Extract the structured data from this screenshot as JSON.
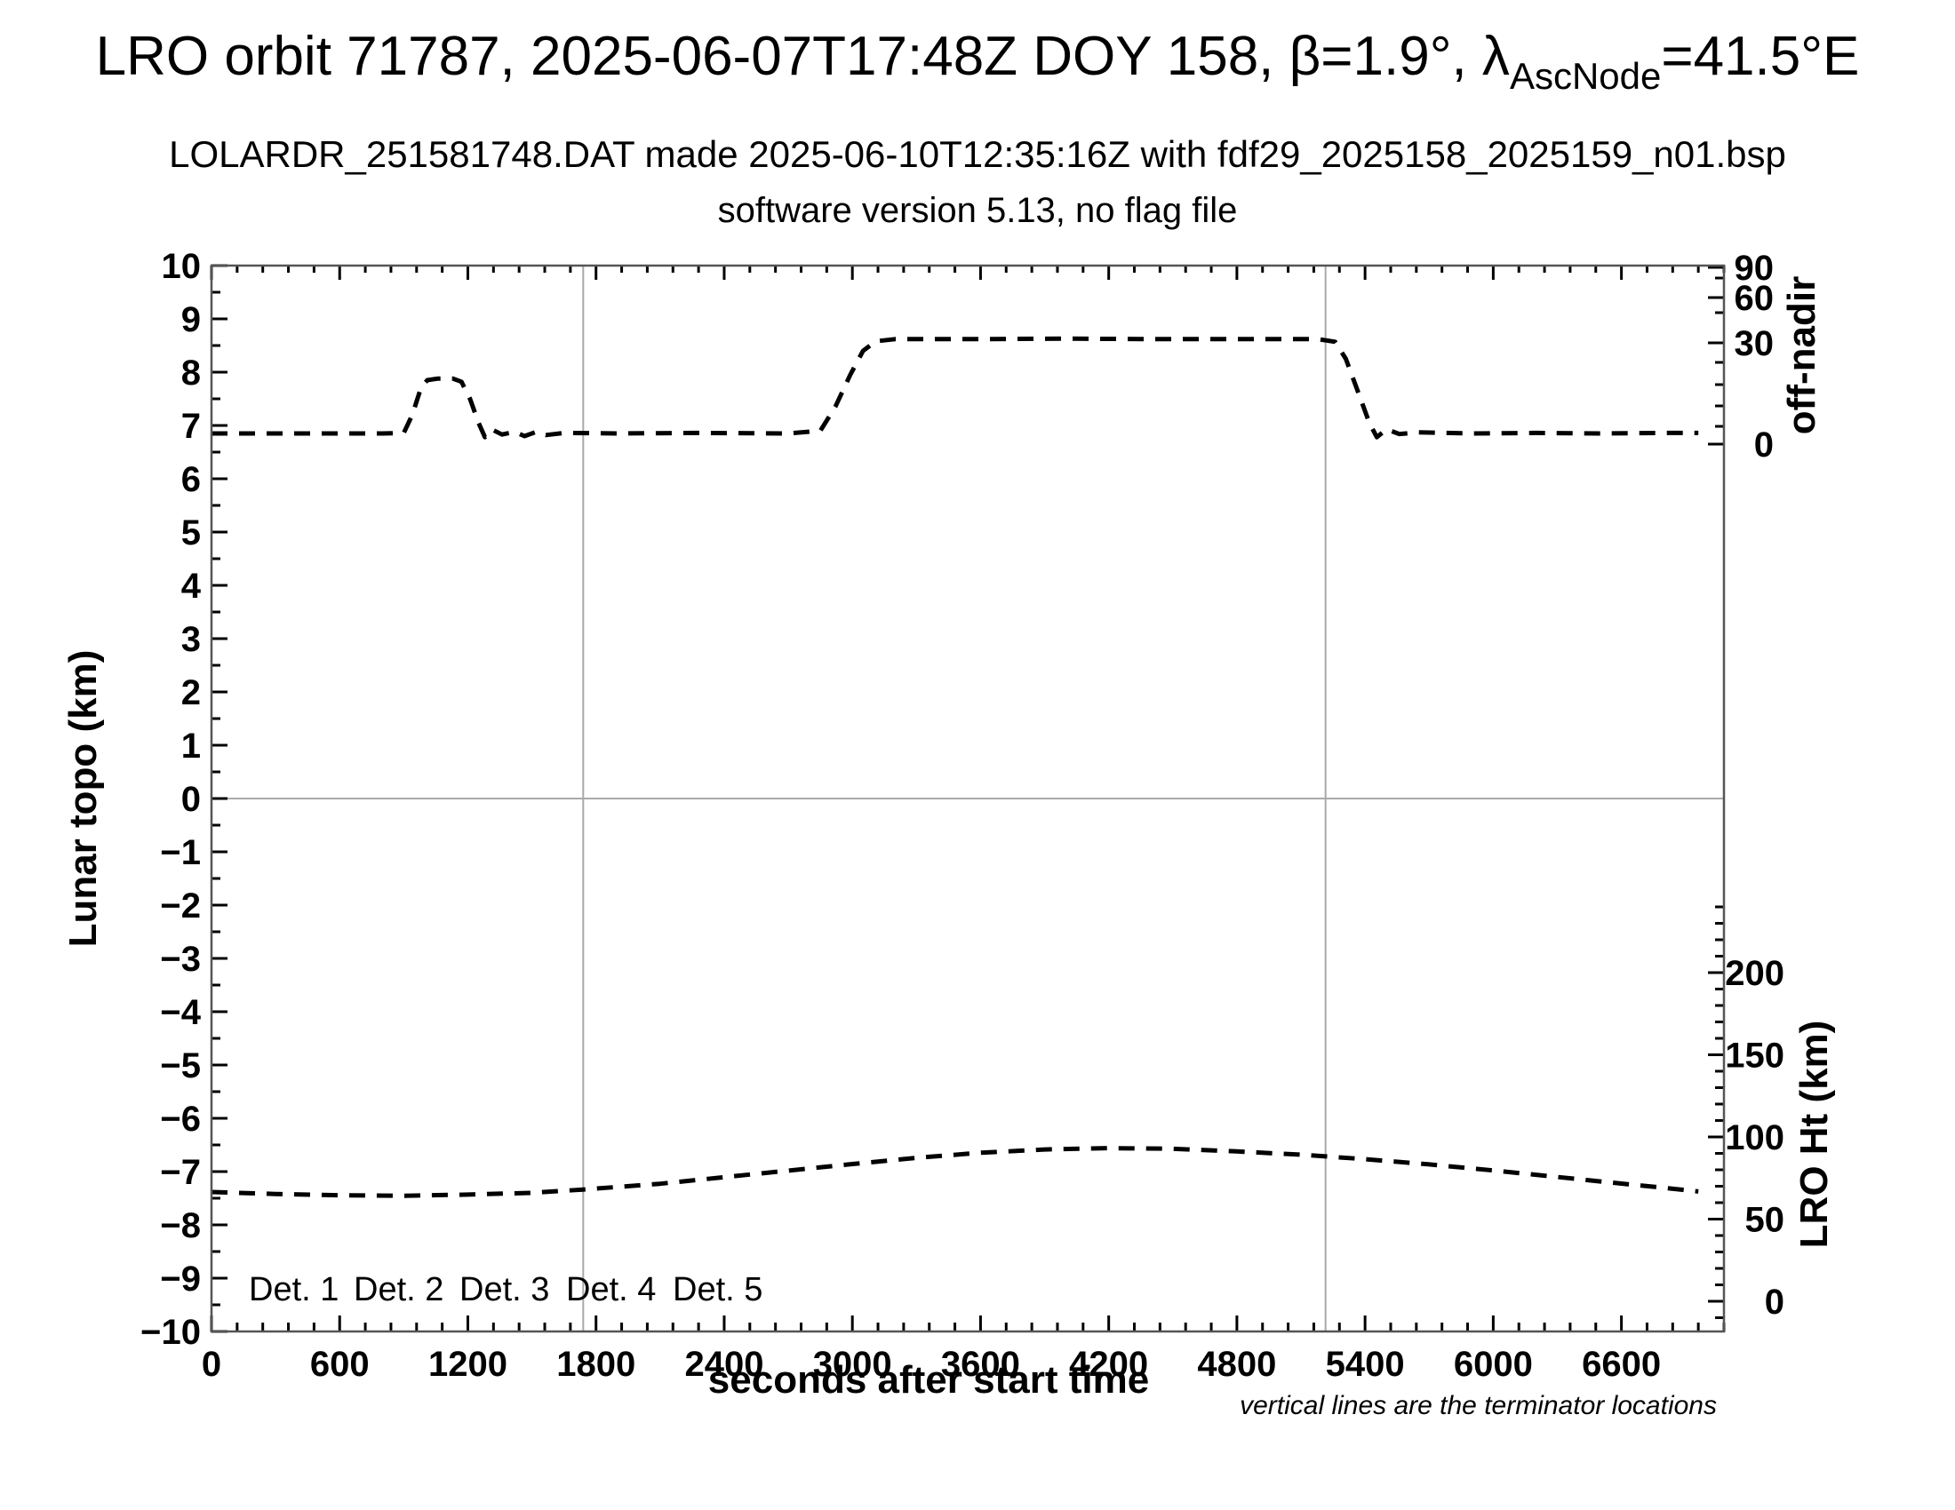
{
  "header": {
    "title_prefix": "LRO orbit 71787, 2025-06-07T17:48Z DOY 158, β=1.9°, λ",
    "title_subscript": "AscNode",
    "title_suffix": "=41.5°E",
    "subtitle": "LOLARDR_251581748.DAT made 2025-06-10T12:35:16Z with fdf29_2025158_2025159_n01.bsp",
    "subtitle2": "software version 5.13, no flag file"
  },
  "chart_data": {
    "type": "line",
    "title": "LRO orbit 71787, 2025-06-07T17:48Z DOY 158, β=1.9°, λAscNode=41.5°E",
    "xlabel": "seconds after start time",
    "xlim": [
      0,
      7080
    ],
    "x_ticks": [
      0,
      600,
      1200,
      1800,
      2400,
      3000,
      3600,
      4200,
      4800,
      5400,
      6000,
      6600
    ],
    "x_minor_step_sec": 120,
    "grid": false,
    "axes": {
      "topo": {
        "label": "Lunar topo (km)",
        "side": "left",
        "lim": [
          -10,
          10
        ],
        "ticks": [
          10,
          9,
          8,
          7,
          6,
          5,
          4,
          3,
          2,
          1,
          0,
          -1,
          -2,
          -3,
          -4,
          -5,
          -6,
          -7,
          -8,
          -9,
          -10
        ],
        "minor_step": 0.5
      },
      "off_nadir": {
        "label": "off-nadir",
        "side": "right-top",
        "units": "degrees",
        "ticks": [
          90,
          60,
          30,
          0
        ],
        "scale": "nonlinear"
      },
      "lro_ht": {
        "label": "LRO Ht (km)",
        "side": "right-bottom",
        "ticks": [
          200,
          150,
          100,
          50,
          0
        ],
        "minor_step_km": 10
      }
    },
    "zero_line_topo_km": 0,
    "terminator_lines_sec": [
      1740,
      5215
    ],
    "annotation": "vertical lines are the terminator locations",
    "legend_position": "bottom-left-inside",
    "legend": [
      {
        "label": "Det. 1",
        "color": "#000000"
      },
      {
        "label": "Det. 2",
        "color": "#0000ff"
      },
      {
        "label": "Det. 3",
        "color": "#00dd00"
      },
      {
        "label": "Det. 4",
        "color": "#ffa500"
      },
      {
        "label": "Det. 5",
        "color": "#ff0000"
      }
    ],
    "series": [
      {
        "name": "spacecraft off-nadir angle",
        "axis": "off_nadir",
        "line_style": "dashed",
        "color": "#000000",
        "approx_levels_deg": {
          "baseline": 3,
          "small_slew_peak": 19,
          "plateau_slew": 32
        },
        "points_deg": [
          [
            0,
            3
          ],
          [
            900,
            3
          ],
          [
            1060,
            19
          ],
          [
            1170,
            19
          ],
          [
            1280,
            2
          ],
          [
            1650,
            3
          ],
          [
            2850,
            3
          ],
          [
            3200,
            32
          ],
          [
            5260,
            32
          ],
          [
            5455,
            2
          ],
          [
            6960,
            3
          ]
        ],
        "points_plot_units": [
          [
            0,
            6.85
          ],
          [
            400,
            6.85
          ],
          [
            800,
            6.85
          ],
          [
            900,
            6.86
          ],
          [
            940,
            7.2
          ],
          [
            980,
            7.7
          ],
          [
            1010,
            7.85
          ],
          [
            1060,
            7.88
          ],
          [
            1130,
            7.88
          ],
          [
            1170,
            7.82
          ],
          [
            1210,
            7.5
          ],
          [
            1250,
            7.05
          ],
          [
            1280,
            6.78
          ],
          [
            1315,
            6.92
          ],
          [
            1360,
            6.83
          ],
          [
            1420,
            6.88
          ],
          [
            1465,
            6.8
          ],
          [
            1520,
            6.88
          ],
          [
            1565,
            6.82
          ],
          [
            1650,
            6.86
          ],
          [
            1900,
            6.85
          ],
          [
            2300,
            6.86
          ],
          [
            2700,
            6.85
          ],
          [
            2850,
            6.9
          ],
          [
            2920,
            7.35
          ],
          [
            2990,
            7.95
          ],
          [
            3050,
            8.4
          ],
          [
            3110,
            8.58
          ],
          [
            3200,
            8.62
          ],
          [
            3600,
            8.62
          ],
          [
            4000,
            8.63
          ],
          [
            4400,
            8.62
          ],
          [
            4900,
            8.62
          ],
          [
            5180,
            8.62
          ],
          [
            5260,
            8.57
          ],
          [
            5310,
            8.25
          ],
          [
            5370,
            7.6
          ],
          [
            5420,
            7.05
          ],
          [
            5455,
            6.78
          ],
          [
            5500,
            6.93
          ],
          [
            5560,
            6.84
          ],
          [
            5650,
            6.87
          ],
          [
            5900,
            6.85
          ],
          [
            6200,
            6.86
          ],
          [
            6500,
            6.85
          ],
          [
            6800,
            6.86
          ],
          [
            6960,
            6.86
          ]
        ]
      },
      {
        "name": "LRO height above surface",
        "axis": "lro_ht",
        "line_style": "dashed",
        "color": "#000000",
        "points_km": [
          [
            0,
            66.5
          ],
          [
            300,
            65.3
          ],
          [
            600,
            64.5
          ],
          [
            900,
            64.2
          ],
          [
            1200,
            64.9
          ],
          [
            1500,
            66.0
          ],
          [
            1740,
            68.0
          ],
          [
            2100,
            71.5
          ],
          [
            2400,
            75.5
          ],
          [
            2700,
            79.5
          ],
          [
            3000,
            83.5
          ],
          [
            3300,
            87.3
          ],
          [
            3600,
            90.4
          ],
          [
            3900,
            92.4
          ],
          [
            4200,
            93.2
          ],
          [
            4500,
            92.8
          ],
          [
            4800,
            91.2
          ],
          [
            5100,
            89.2
          ],
          [
            5400,
            86.5
          ],
          [
            5700,
            83.3
          ],
          [
            6000,
            79.6
          ],
          [
            6300,
            75.6
          ],
          [
            6600,
            71.6
          ],
          [
            6800,
            69.0
          ],
          [
            6960,
            66.8
          ]
        ]
      }
    ]
  }
}
